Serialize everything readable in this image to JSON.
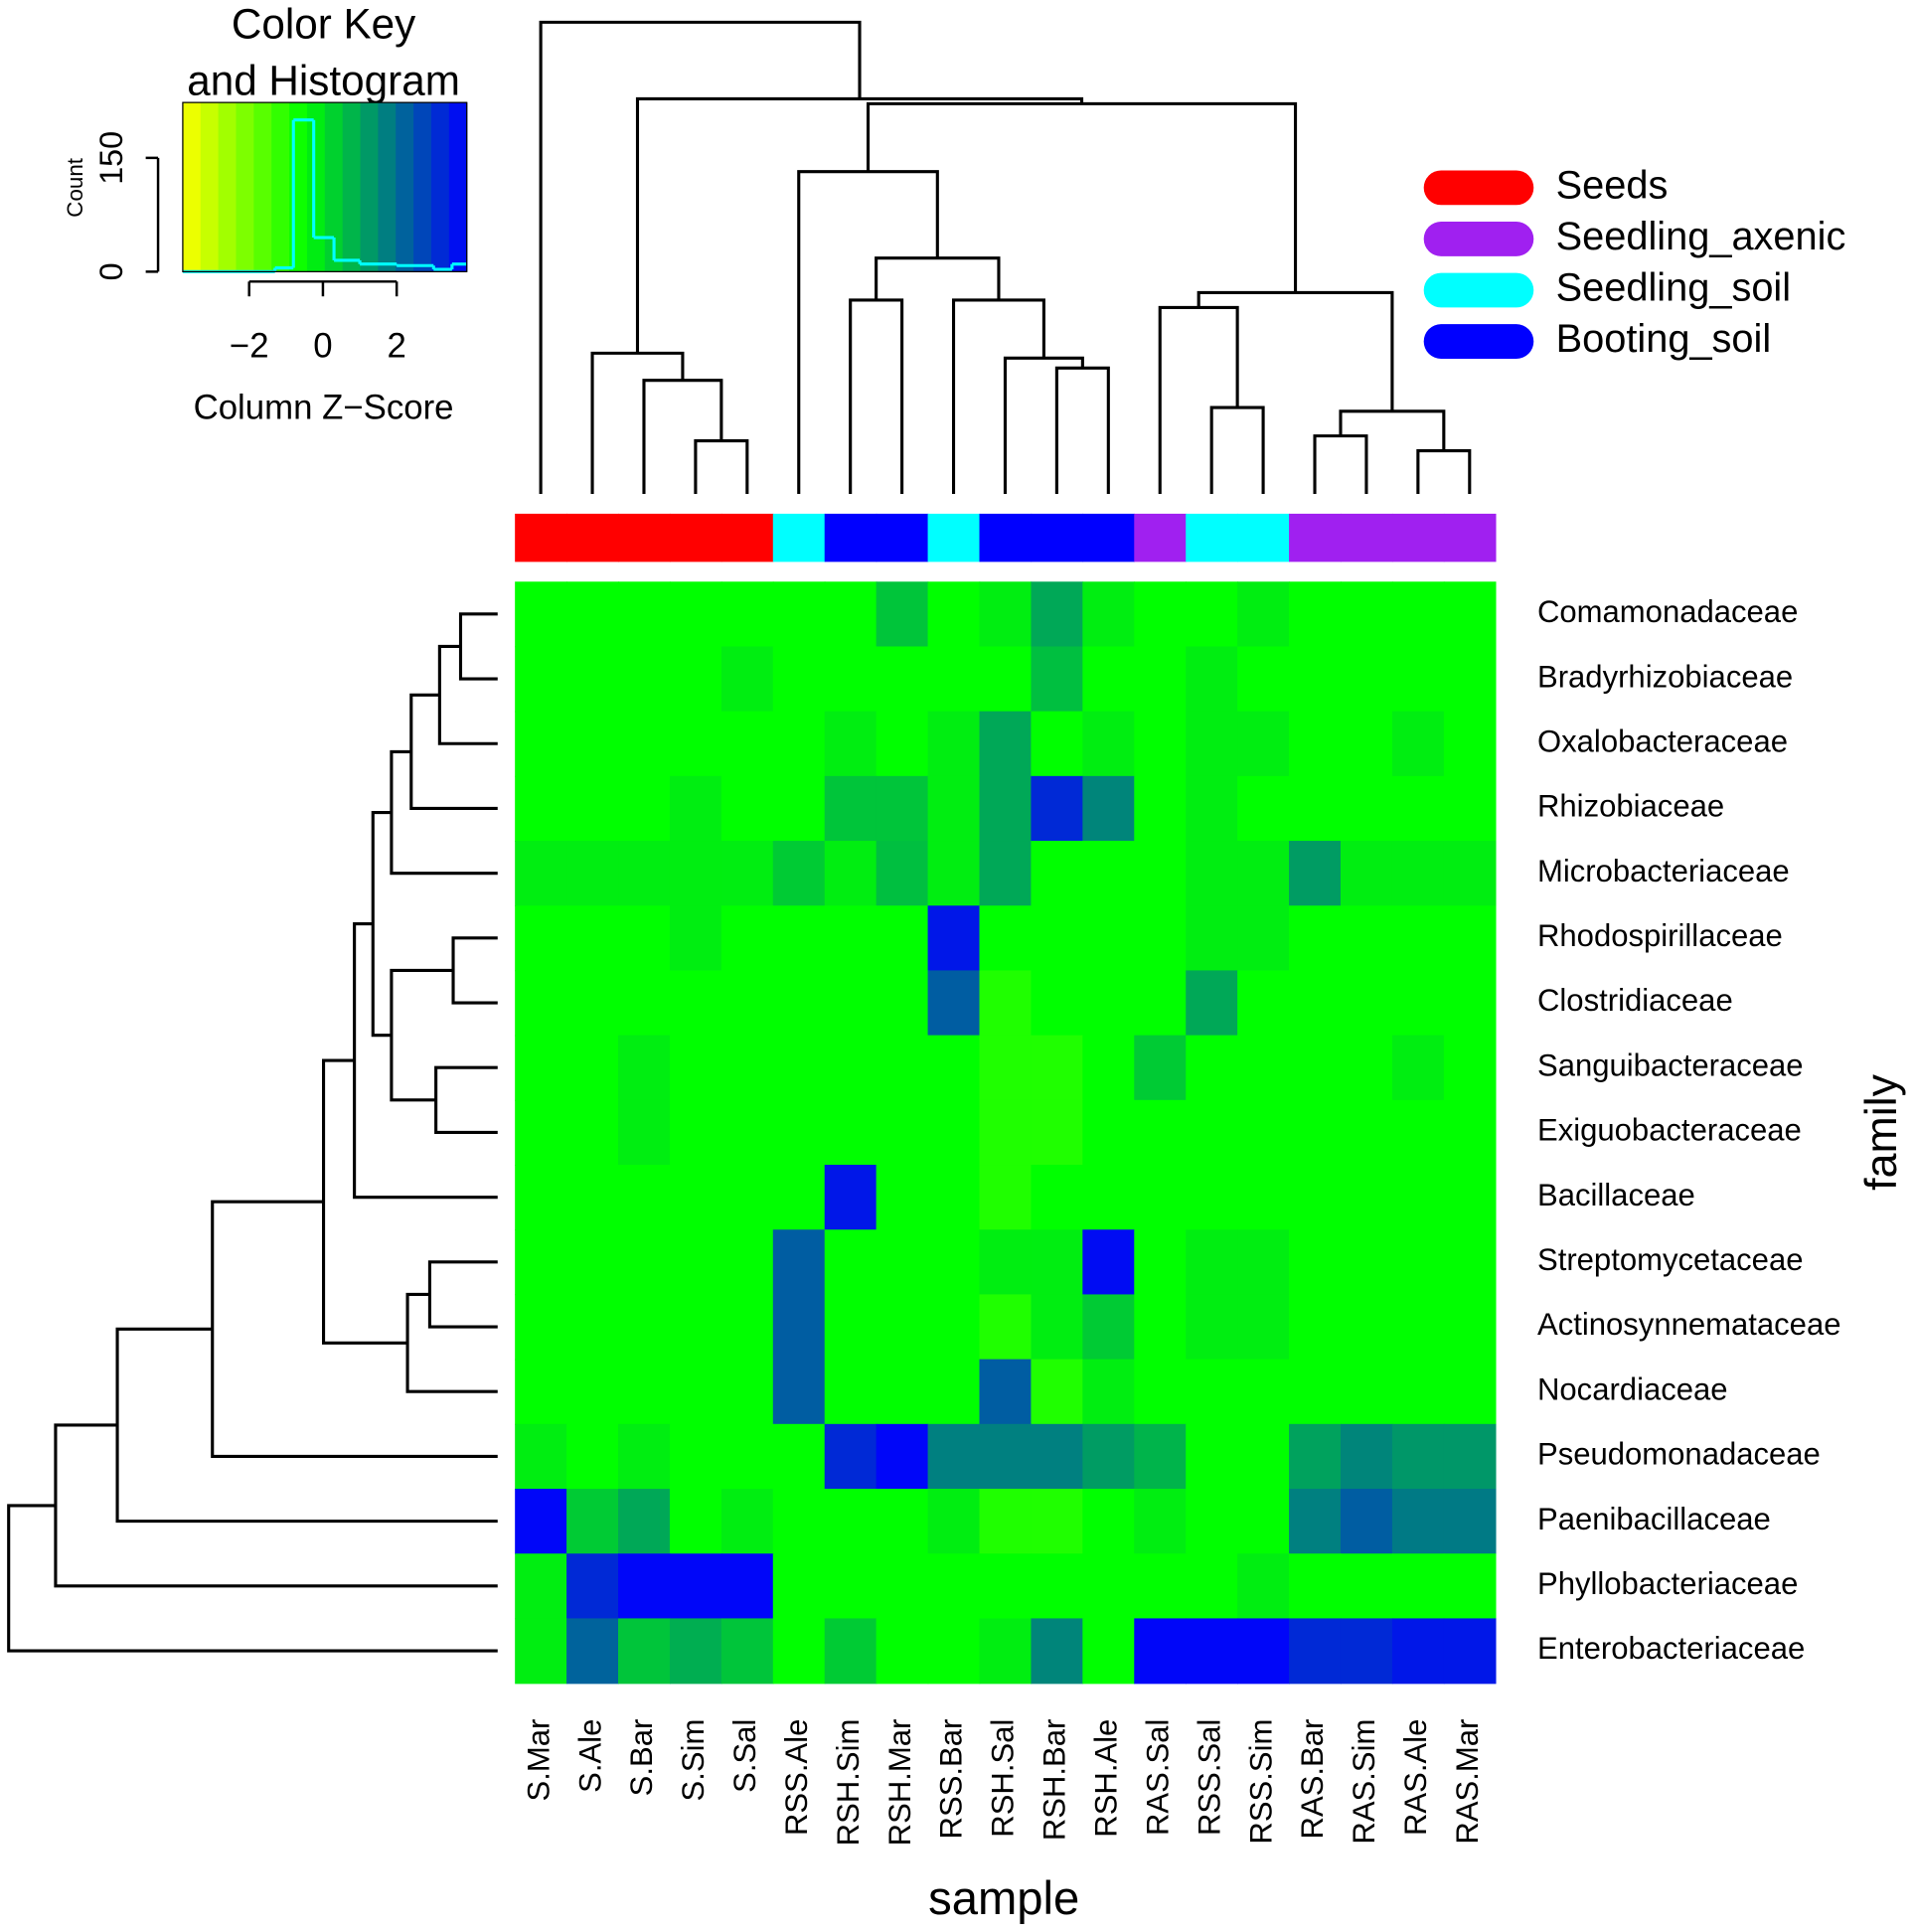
{
  "chart_data": {
    "type": "heatmap",
    "x_label": "sample",
    "y_label": "family",
    "columns": [
      "S.Mar",
      "S.Ale",
      "S.Bar",
      "S.Sim",
      "S.Sal",
      "RSS.Ale",
      "RSH.Sim",
      "RSH.Mar",
      "RSS.Bar",
      "RSH.Sal",
      "RSH.Bar",
      "RSH.Ale",
      "RAS.Sal",
      "RSS.Sal",
      "RSS.Sim",
      "RAS.Bar",
      "RAS.Sim",
      "RAS.Ale",
      "RAS.Mar"
    ],
    "rows": [
      "Comamonadaceae",
      "Bradyrhizobiaceae",
      "Oxalobacteraceae",
      "Rhizobiaceae",
      "Microbacteriaceae",
      "Rhodospirillaceae",
      "Clostridiaceae",
      "Sanguibacteraceae",
      "Exiguobacteraceae",
      "Bacillaceae",
      "Streptomycetaceae",
      "Actinosynnemataceae",
      "Nocardiaceae",
      "Pseudomonadaceae",
      "Paenibacillaceae",
      "Phyllobacteriaceae",
      "Enterobacteriaceae"
    ],
    "values": [
      [
        -0.5,
        -0.5,
        -0.5,
        -0.5,
        -0.5,
        -0.5,
        -0.5,
        0.5,
        -0.5,
        -0.2,
        1.0,
        -0.2,
        -0.5,
        -0.5,
        -0.2,
        -0.5,
        -0.5,
        -0.5,
        -0.5
      ],
      [
        -0.5,
        -0.5,
        -0.5,
        -0.5,
        -0.2,
        -0.5,
        -0.5,
        -0.5,
        -0.5,
        -0.5,
        0.6,
        -0.5,
        -0.5,
        -0.2,
        -0.5,
        -0.5,
        -0.5,
        -0.5,
        -0.5
      ],
      [
        -0.5,
        -0.5,
        -0.5,
        -0.5,
        -0.5,
        -0.5,
        -0.2,
        -0.5,
        -0.2,
        1.0,
        -0.5,
        -0.2,
        -0.5,
        -0.2,
        -0.2,
        -0.5,
        -0.5,
        -0.2,
        -0.5
      ],
      [
        -0.5,
        -0.5,
        -0.5,
        -0.2,
        -0.5,
        -0.5,
        0.5,
        0.5,
        -0.2,
        1.0,
        3.2,
        1.6,
        -0.5,
        -0.2,
        -0.5,
        -0.5,
        -0.5,
        -0.5,
        -0.5
      ],
      [
        -0.2,
        -0.2,
        -0.2,
        -0.2,
        -0.2,
        0.4,
        -0.2,
        0.6,
        -0.2,
        1.0,
        -0.5,
        -0.5,
        -0.5,
        -0.2,
        -0.2,
        1.2,
        -0.2,
        -0.2,
        -0.2
      ],
      [
        -0.5,
        -0.5,
        -0.5,
        -0.2,
        -0.5,
        -0.5,
        -0.5,
        -0.5,
        3.5,
        -0.5,
        -0.5,
        -0.5,
        -0.5,
        -0.2,
        -0.2,
        -0.5,
        -0.5,
        -0.5,
        -0.5
      ],
      [
        -0.5,
        -0.5,
        -0.5,
        -0.5,
        -0.5,
        -0.5,
        -0.5,
        -0.5,
        2.3,
        -0.9,
        -0.5,
        -0.5,
        -0.5,
        1.0,
        -0.5,
        -0.5,
        -0.5,
        -0.5,
        -0.5
      ],
      [
        -0.5,
        -0.5,
        -0.2,
        -0.5,
        -0.5,
        -0.5,
        -0.5,
        -0.5,
        -0.5,
        -0.9,
        -0.9,
        -0.5,
        0.4,
        -0.5,
        -0.5,
        -0.5,
        -0.5,
        -0.2,
        -0.5
      ],
      [
        -0.5,
        -0.5,
        -0.2,
        -0.5,
        -0.5,
        -0.5,
        -0.5,
        -0.5,
        -0.5,
        -0.9,
        -0.9,
        -0.5,
        -0.5,
        -0.5,
        -0.5,
        -0.5,
        -0.5,
        -0.5,
        -0.5
      ],
      [
        -0.5,
        -0.5,
        -0.5,
        -0.5,
        -0.5,
        -0.5,
        3.5,
        -0.5,
        -0.5,
        -0.9,
        -0.5,
        -0.5,
        -0.5,
        -0.5,
        -0.5,
        -0.5,
        -0.5,
        -0.5,
        -0.5
      ],
      [
        -0.5,
        -0.5,
        -0.5,
        -0.5,
        -0.5,
        2.3,
        -0.5,
        -0.5,
        -0.5,
        -0.2,
        -0.2,
        3.7,
        -0.5,
        -0.2,
        -0.2,
        -0.5,
        -0.5,
        -0.5,
        -0.5
      ],
      [
        -0.5,
        -0.5,
        -0.5,
        -0.5,
        -0.5,
        2.3,
        -0.5,
        -0.5,
        -0.5,
        -0.9,
        -0.2,
        0.4,
        -0.5,
        -0.2,
        -0.2,
        -0.5,
        -0.5,
        -0.5,
        -0.5
      ],
      [
        -0.5,
        -0.5,
        -0.5,
        -0.5,
        -0.5,
        2.3,
        -0.5,
        -0.5,
        -0.5,
        2.3,
        -0.9,
        -0.2,
        -0.5,
        -0.5,
        -0.5,
        -0.5,
        -0.5,
        -0.5,
        -0.5
      ],
      [
        -0.2,
        -0.5,
        -0.2,
        -0.5,
        -0.5,
        -0.5,
        3.2,
        3.8,
        1.7,
        1.7,
        1.7,
        1.2,
        0.8,
        -0.5,
        -0.5,
        1.1,
        1.6,
        1.3,
        1.3
      ],
      [
        3.8,
        0.4,
        1.0,
        -0.5,
        -0.2,
        -0.5,
        -0.5,
        -0.5,
        -0.2,
        -0.9,
        -0.9,
        -0.5,
        -0.2,
        -0.5,
        -0.5,
        1.7,
        2.3,
        1.8,
        1.8
      ],
      [
        -0.2,
        3.2,
        3.8,
        3.8,
        3.8,
        -0.5,
        -0.5,
        -0.5,
        -0.5,
        -0.5,
        -0.5,
        -0.5,
        -0.5,
        -0.5,
        -0.2,
        -0.5,
        -0.5,
        -0.5,
        -0.5
      ],
      [
        -0.2,
        2.2,
        0.5,
        0.9,
        0.5,
        -0.5,
        0.4,
        -0.5,
        -0.5,
        -0.2,
        1.6,
        -0.5,
        3.8,
        3.8,
        3.8,
        3.2,
        3.2,
        3.5,
        3.5
      ]
    ],
    "column_groups": [
      "Seeds",
      "Seeds",
      "Seeds",
      "Seeds",
      "Seeds",
      "Seedling_soil",
      "Booting_soil",
      "Booting_soil",
      "Seedling_soil",
      "Booting_soil",
      "Booting_soil",
      "Booting_soil",
      "Seedling_axenic",
      "Seedling_soil",
      "Seedling_soil",
      "Seedling_axenic",
      "Seedling_axenic",
      "Seedling_axenic",
      "Seedling_axenic"
    ],
    "groups": [
      {
        "name": "Seeds",
        "color": "#ff0000"
      },
      {
        "name": "Seedling_axenic",
        "color": "#a020f0"
      },
      {
        "name": "Seedling_soil",
        "color": "#00ffff"
      },
      {
        "name": "Booting_soil",
        "color": "#0000ff"
      }
    ],
    "legend": "top right",
    "color_stops": [
      {
        "value": -3.8,
        "color": "#ffff00"
      },
      {
        "value": -0.5,
        "color": "#00ff00"
      },
      {
        "value": 3.9,
        "color": "#0000ff"
      }
    ],
    "color_key": {
      "title": [
        "Color Key",
        "and Histogram"
      ],
      "x_label": "Column Z−Score",
      "y_label": "Count",
      "xlim": [
        -3.8,
        3.9
      ],
      "xticks": [
        {
          "value": -2,
          "label": "−2"
        },
        0,
        2
      ],
      "ylim": [
        0,
        223
      ],
      "yticks": [
        0,
        150
      ],
      "bins": [
        -3.8,
        -1.3,
        -0.8,
        -0.25,
        0.3,
        1.0,
        2.0,
        3.0,
        3.5,
        3.9
      ],
      "counts": [
        0,
        5,
        200,
        45,
        15,
        10,
        8,
        3,
        10
      ],
      "color": "#00ffff"
    }
  }
}
